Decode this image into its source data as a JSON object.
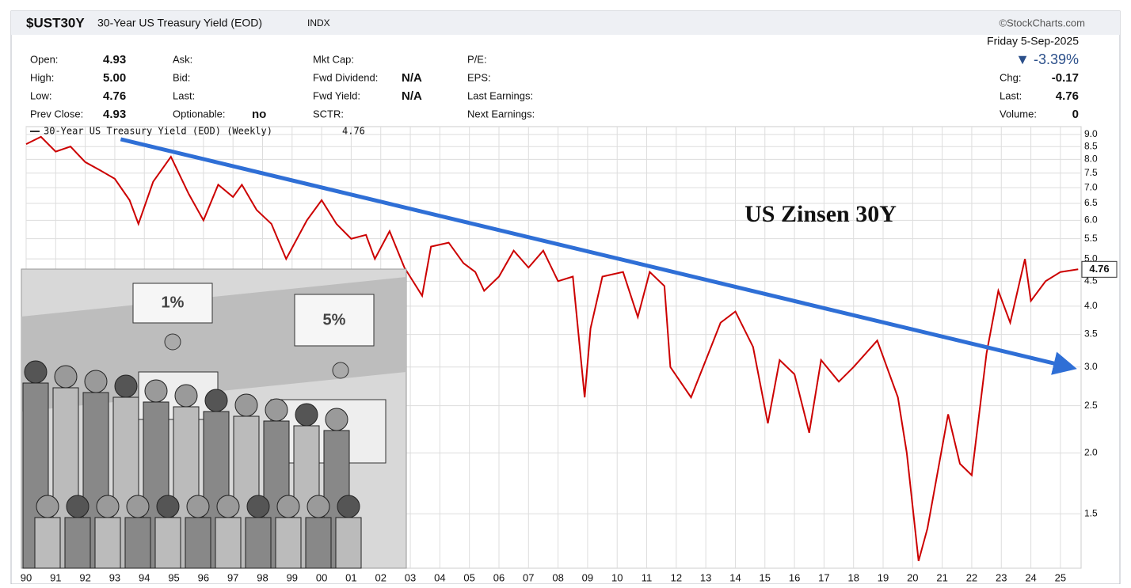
{
  "header": {
    "ticker": "$UST30Y",
    "name": "30-Year US Treasury Yield (EOD)",
    "exchange": "INDX",
    "source": "©StockCharts.com",
    "date": "Friday  5-Sep-2025",
    "change_pct": "▼ -3.39%",
    "fields": [
      {
        "label": "Open:",
        "value": "4.93"
      },
      {
        "label": "High:",
        "value": "5.00"
      },
      {
        "label": "Low:",
        "value": "4.76"
      },
      {
        "label": "Prev Close:",
        "value": "4.93"
      },
      {
        "label": "Ask:"
      },
      {
        "label": "Bid:"
      },
      {
        "label": "Last:"
      },
      {
        "label": "Optionable:",
        "value": "no"
      },
      {
        "label": "Mkt Cap:"
      },
      {
        "label": "Fwd Dividend:",
        "value": "N/A"
      },
      {
        "label": "Fwd Yield:",
        "value": "N/A"
      },
      {
        "label": "SCTR:"
      },
      {
        "label": "P/E:"
      },
      {
        "label": "EPS:"
      },
      {
        "label": "Last Earnings:"
      },
      {
        "label": "Next Earnings:"
      },
      {
        "label": "Chg:",
        "value": "-0.17"
      },
      {
        "label": "Last:",
        "value": "4.76"
      },
      {
        "label": "Volume:",
        "value": "0"
      }
    ]
  },
  "inset": {
    "labels": [
      "1%",
      "5%"
    ]
  },
  "chart_data": {
    "type": "line",
    "annotation": "US Zinsen 30Y",
    "log_scale": true,
    "grid": true,
    "xlim": [
      1990,
      2025.7
    ],
    "ylim": [
      1.16,
      9.34
    ],
    "xticks": [
      {
        "value": 1990,
        "label": "90"
      },
      {
        "value": 1991,
        "label": "91"
      },
      {
        "value": 1992,
        "label": "92"
      },
      {
        "value": 1993,
        "label": "93"
      },
      {
        "value": 1994,
        "label": "94"
      },
      {
        "value": 1995,
        "label": "95"
      },
      {
        "value": 1996,
        "label": "96"
      },
      {
        "value": 1997,
        "label": "97"
      },
      {
        "value": 1998,
        "label": "98"
      },
      {
        "value": 1999,
        "label": "99"
      },
      {
        "value": 2000,
        "label": "00"
      },
      {
        "value": 2001,
        "label": "01"
      },
      {
        "value": 2002,
        "label": "02"
      },
      {
        "value": 2003,
        "label": "03"
      },
      {
        "value": 2004,
        "label": "04"
      },
      {
        "value": 2005,
        "label": "05"
      },
      {
        "value": 2006,
        "label": "06"
      },
      {
        "value": 2007,
        "label": "07"
      },
      {
        "value": 2008,
        "label": "08"
      },
      {
        "value": 2009,
        "label": "09"
      },
      {
        "value": 2010,
        "label": "10"
      },
      {
        "value": 2011,
        "label": "11"
      },
      {
        "value": 2012,
        "label": "12"
      },
      {
        "value": 2013,
        "label": "13"
      },
      {
        "value": 2014,
        "label": "14"
      },
      {
        "value": 2015,
        "label": "15"
      },
      {
        "value": 2016,
        "label": "16"
      },
      {
        "value": 2017,
        "label": "17"
      },
      {
        "value": 2018,
        "label": "18"
      },
      {
        "value": 2019,
        "label": "19"
      },
      {
        "value": 2020,
        "label": "20"
      },
      {
        "value": 2021,
        "label": "21"
      },
      {
        "value": 2022,
        "label": "22"
      },
      {
        "value": 2023,
        "label": "23"
      },
      {
        "value": 2024,
        "label": "24"
      },
      {
        "value": 2025,
        "label": "25"
      }
    ],
    "yticks": [
      1.5,
      {
        "value": 2,
        "label": "2.0"
      },
      2.5,
      {
        "value": 3,
        "label": "3.0"
      },
      3.5,
      {
        "value": 4,
        "label": "4.0"
      },
      4.5,
      {
        "value": 5,
        "label": "5.0"
      },
      5.5,
      {
        "value": 6,
        "label": "6.0"
      },
      6.5,
      {
        "value": 7,
        "label": "7.0"
      },
      7.5,
      {
        "value": 8,
        "label": "8.0"
      },
      8.5,
      {
        "value": 9,
        "label": "9.0"
      }
    ],
    "series": [
      {
        "name": "30-Year US Treasury Yield (EOD) (Weekly)",
        "color": "#cc0000",
        "x": [
          1990.0,
          1990.5,
          1991.0,
          1991.5,
          1992.0,
          1992.5,
          1993.0,
          1993.5,
          1993.8,
          1994.3,
          1994.9,
          1995.5,
          1996.0,
          1996.5,
          1997.0,
          1997.3,
          1997.8,
          1998.3,
          1998.8,
          1999.5,
          2000.0,
          2000.5,
          2001.0,
          2001.5,
          2001.8,
          2002.3,
          2002.8,
          2003.4,
          2003.7,
          2004.3,
          2004.8,
          2005.2,
          2005.5,
          2006.0,
          2006.5,
          2007.0,
          2007.5,
          2008.0,
          2008.5,
          2008.9,
          2009.1,
          2009.5,
          2010.2,
          2010.7,
          2011.1,
          2011.6,
          2011.8,
          2012.5,
          2013.0,
          2013.5,
          2014.0,
          2014.6,
          2015.1,
          2015.5,
          2016.0,
          2016.5,
          2016.9,
          2017.5,
          2018.0,
          2018.8,
          2019.5,
          2019.8,
          2020.2,
          2020.5,
          2021.2,
          2021.6,
          2022.0,
          2022.5,
          2022.9,
          2023.3,
          2023.8,
          2024.0,
          2024.5,
          2025.0,
          2025.6
        ],
        "values": [
          8.6,
          8.9,
          8.3,
          8.5,
          7.9,
          7.6,
          7.3,
          6.6,
          5.9,
          7.2,
          8.1,
          6.8,
          6.0,
          7.1,
          6.7,
          7.1,
          6.3,
          5.9,
          5.0,
          6.0,
          6.6,
          5.9,
          5.5,
          5.6,
          5.0,
          5.7,
          4.8,
          4.2,
          5.3,
          5.4,
          4.9,
          4.7,
          4.3,
          4.6,
          5.2,
          4.8,
          5.2,
          4.5,
          4.6,
          2.6,
          3.6,
          4.6,
          4.7,
          3.8,
          4.7,
          4.4,
          3.0,
          2.6,
          3.1,
          3.7,
          3.9,
          3.3,
          2.3,
          3.1,
          2.9,
          2.2,
          3.1,
          2.8,
          3.0,
          3.4,
          2.6,
          2.0,
          1.2,
          1.4,
          2.4,
          1.9,
          1.8,
          3.2,
          4.3,
          3.7,
          5.0,
          4.1,
          4.5,
          4.7,
          4.76
        ]
      }
    ],
    "trendline": {
      "color": "#2f6fd6",
      "x": [
        1993.2,
        2025.3
      ],
      "values": [
        8.8,
        3.0
      ]
    }
  }
}
